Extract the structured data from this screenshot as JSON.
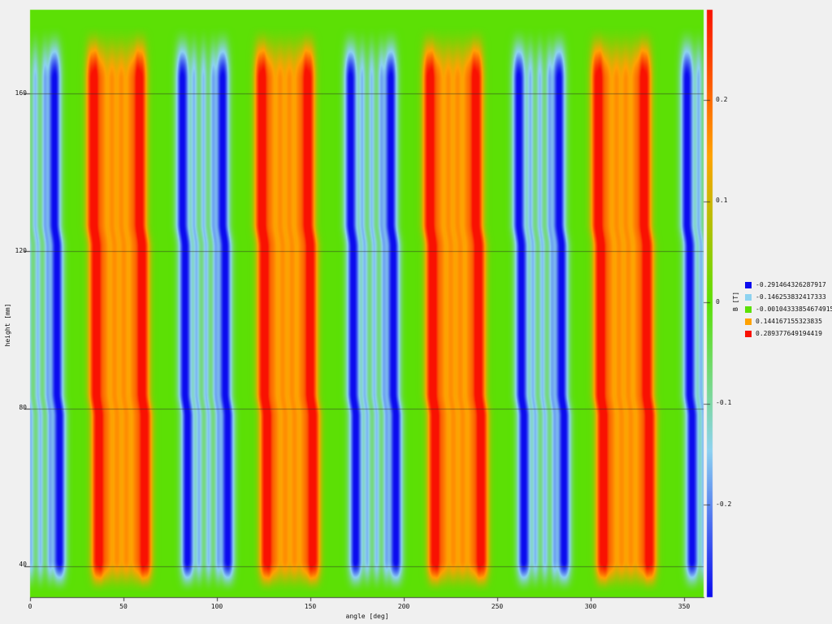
{
  "page": {
    "background_color": "#f0f0f0",
    "text_color": "#111111"
  },
  "chart_data": {
    "type": "heatmap",
    "title": "",
    "xlabel": "angle [deg]",
    "ylabel": "height [mm]",
    "x_ticks": [
      0,
      50,
      100,
      150,
      200,
      250,
      300,
      350
    ],
    "y_ticks": [
      40,
      80,
      120,
      160
    ],
    "x_range_deg": [
      0,
      360.43
    ],
    "y_range_mm": [
      32.17,
      181.24
    ],
    "grid": "horizontal-only",
    "colorbar": {
      "label": "B [T]",
      "vmin": -0.291464326287917,
      "vmax": 0.289377649194419,
      "ticks": [
        {
          "label": "0.2",
          "value": 0.2
        },
        {
          "label": "0.1",
          "value": 0.1
        },
        {
          "label": "0",
          "value": 0
        },
        {
          "label": "-0.1",
          "value": -0.1
        },
        {
          "label": "-0.2",
          "value": -0.2
        }
      ]
    },
    "colormap": [
      {
        "value": -0.291464326287917,
        "color": "#0b0bee"
      },
      {
        "value": -0.146253832417333,
        "color": "#8dd2f0"
      },
      {
        "value": -0.00104333854674915,
        "color": "#5be005"
      },
      {
        "value": 0.144167155323835,
        "color": "#ffa202"
      },
      {
        "value": 0.289377649194419,
        "color": "#f91102"
      }
    ],
    "legend": {
      "position": "right",
      "items": [
        {
          "color": "#0b0bee",
          "label": "-0.291464326287917"
        },
        {
          "color": "#8dd2f0",
          "label": "-0.146253832417333"
        },
        {
          "color": "#5be005",
          "label": "-0.00104333854674915"
        },
        {
          "color": "#ffa202",
          "label": "0.144167155323835"
        },
        {
          "color": "#f91102",
          "label": "0.289377649194419"
        }
      ]
    },
    "field_model": {
      "period_deg": 90,
      "negative_peak_centers_deg": [
        14,
        82
      ],
      "positive_peak_centers_deg": [
        34,
        60
      ],
      "peak_amplitude_T": 0.3,
      "peak_sigma_deg": 2.3,
      "positive_plateau": {
        "start_deg": 34,
        "end_deg": 60,
        "base_T": 0.115,
        "edge_softness_deg": 2.5,
        "ripple_centers_deg": [
          39.5,
          44.5,
          49.5,
          54.5
        ],
        "ripple_amp_T": 0.05,
        "ripple_sigma_deg": 1.5
      },
      "negative_plateau": {
        "start_deg": 82,
        "end_deg": 104,
        "base_T": -0.05,
        "edge_softness_deg": 2.5,
        "ripple_centers_deg": [
          88.5,
          93.5,
          98.5
        ],
        "ripple_amp_T": -0.11,
        "ripple_sigma_deg": 1.2
      },
      "skew": {
        "kink_heights_mm": [
          127,
          84
        ],
        "top_shift_deg": 0.7,
        "step_deg": 1.35,
        "ramp_mm": 6
      },
      "envelope": {
        "top_zero_mm": 177.5,
        "top_full_mm": 163.5,
        "bottom_full_mm": 41.5,
        "bottom_zero_mm": 33
      }
    }
  }
}
